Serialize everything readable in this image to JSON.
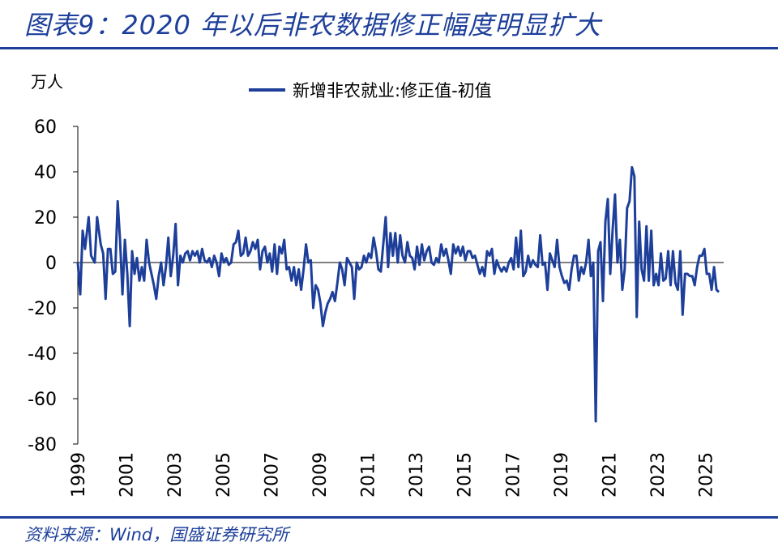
{
  "header": {
    "title": "图表9：2020 年以后非农数据修正幅度明显扩大"
  },
  "footer": {
    "source": "资料来源：Wind，国盛证券研究所"
  },
  "colors": {
    "accent": "#1d3f9a",
    "series": "#1d3f9a"
  },
  "chart_data": {
    "type": "line",
    "title": "",
    "ylabel": "万人",
    "xlabel": "",
    "ylim": [
      -80,
      60
    ],
    "yticks": [
      60,
      40,
      20,
      0,
      -20,
      -40,
      -60,
      -80
    ],
    "xlim": [
      1999.0,
      2025.75
    ],
    "xticks": [
      "1999",
      "2001",
      "2003",
      "2005",
      "2007",
      "2009",
      "2011",
      "2013",
      "2015",
      "2017",
      "2019",
      "2021",
      "2023",
      "2025"
    ],
    "legend_position": "top-center",
    "grid": false,
    "series": [
      {
        "name": "新增非农就业:修正值-初值",
        "points": [
          [
            1999.0,
            0
          ],
          [
            1999.1,
            -14
          ],
          [
            1999.2,
            14
          ],
          [
            1999.3,
            6
          ],
          [
            1999.45,
            20
          ],
          [
            1999.55,
            3
          ],
          [
            1999.7,
            0
          ],
          [
            1999.8,
            20
          ],
          [
            1999.95,
            8
          ],
          [
            2000.05,
            4
          ],
          [
            2000.15,
            -16
          ],
          [
            2000.25,
            6
          ],
          [
            2000.35,
            6
          ],
          [
            2000.45,
            -5
          ],
          [
            2000.55,
            -4
          ],
          [
            2000.65,
            27
          ],
          [
            2000.75,
            10
          ],
          [
            2000.85,
            -14
          ],
          [
            2000.95,
            10
          ],
          [
            2001.05,
            -5
          ],
          [
            2001.15,
            -28
          ],
          [
            2001.25,
            5
          ],
          [
            2001.35,
            -5
          ],
          [
            2001.45,
            2
          ],
          [
            2001.55,
            -8
          ],
          [
            2001.65,
            -2
          ],
          [
            2001.75,
            -8
          ],
          [
            2001.85,
            10
          ],
          [
            2001.95,
            0
          ],
          [
            2002.05,
            -5
          ],
          [
            2002.15,
            -10
          ],
          [
            2002.25,
            -16
          ],
          [
            2002.35,
            -6
          ],
          [
            2002.45,
            0
          ],
          [
            2002.55,
            -10
          ],
          [
            2002.65,
            -2
          ],
          [
            2002.75,
            11
          ],
          [
            2002.85,
            -6
          ],
          [
            2002.95,
            3
          ],
          [
            2003.05,
            17
          ],
          [
            2003.15,
            -10
          ],
          [
            2003.25,
            3
          ],
          [
            2003.35,
            0
          ],
          [
            2003.45,
            4
          ],
          [
            2003.55,
            5
          ],
          [
            2003.65,
            1
          ],
          [
            2003.75,
            5
          ],
          [
            2003.85,
            3
          ],
          [
            2003.95,
            5
          ],
          [
            2004.05,
            0
          ],
          [
            2004.15,
            6
          ],
          [
            2004.25,
            1
          ],
          [
            2004.35,
            0
          ],
          [
            2004.45,
            2
          ],
          [
            2004.55,
            -2
          ],
          [
            2004.65,
            3
          ],
          [
            2004.75,
            0
          ],
          [
            2004.85,
            -6
          ],
          [
            2004.95,
            4
          ],
          [
            2005.05,
            0
          ],
          [
            2005.15,
            2
          ],
          [
            2005.25,
            -1
          ],
          [
            2005.35,
            0
          ],
          [
            2005.45,
            8
          ],
          [
            2005.55,
            9
          ],
          [
            2005.65,
            14
          ],
          [
            2005.75,
            3
          ],
          [
            2005.85,
            4
          ],
          [
            2005.95,
            11
          ],
          [
            2006.05,
            3
          ],
          [
            2006.15,
            5
          ],
          [
            2006.25,
            9
          ],
          [
            2006.35,
            6
          ],
          [
            2006.45,
            10
          ],
          [
            2006.55,
            -3
          ],
          [
            2006.65,
            5
          ],
          [
            2006.75,
            7
          ],
          [
            2006.85,
            0
          ],
          [
            2006.95,
            4
          ],
          [
            2007.05,
            -4
          ],
          [
            2007.15,
            8
          ],
          [
            2007.25,
            -5
          ],
          [
            2007.35,
            7
          ],
          [
            2007.45,
            4
          ],
          [
            2007.55,
            10
          ],
          [
            2007.65,
            -3
          ],
          [
            2007.75,
            -2
          ],
          [
            2007.85,
            -8
          ],
          [
            2007.95,
            -2
          ],
          [
            2008.05,
            -10
          ],
          [
            2008.15,
            -3
          ],
          [
            2008.25,
            -12
          ],
          [
            2008.35,
            -3
          ],
          [
            2008.45,
            8
          ],
          [
            2008.55,
            0
          ],
          [
            2008.65,
            1
          ],
          [
            2008.75,
            -20
          ],
          [
            2008.85,
            -10
          ],
          [
            2008.95,
            -12
          ],
          [
            2009.05,
            -18
          ],
          [
            2009.15,
            -28
          ],
          [
            2009.25,
            -22
          ],
          [
            2009.35,
            -18
          ],
          [
            2009.45,
            -16
          ],
          [
            2009.55,
            -13
          ],
          [
            2009.65,
            -17
          ],
          [
            2009.75,
            -9
          ],
          [
            2009.85,
            0
          ],
          [
            2009.95,
            -3
          ],
          [
            2010.05,
            -10
          ],
          [
            2010.15,
            2
          ],
          [
            2010.25,
            0
          ],
          [
            2010.35,
            -2
          ],
          [
            2010.45,
            -16
          ],
          [
            2010.55,
            0
          ],
          [
            2010.65,
            -3
          ],
          [
            2010.75,
            -2
          ],
          [
            2010.85,
            3
          ],
          [
            2010.95,
            0
          ],
          [
            2011.05,
            4
          ],
          [
            2011.15,
            2
          ],
          [
            2011.25,
            11
          ],
          [
            2011.35,
            5
          ],
          [
            2011.45,
            -3
          ],
          [
            2011.55,
            -4
          ],
          [
            2011.65,
            8
          ],
          [
            2011.75,
            20
          ],
          [
            2011.85,
            -2
          ],
          [
            2011.95,
            13
          ],
          [
            2012.05,
            3
          ],
          [
            2012.15,
            13
          ],
          [
            2012.25,
            0
          ],
          [
            2012.35,
            12
          ],
          [
            2012.45,
            3
          ],
          [
            2012.55,
            0
          ],
          [
            2012.65,
            9
          ],
          [
            2012.75,
            3
          ],
          [
            2012.85,
            2
          ],
          [
            2012.95,
            -3
          ],
          [
            2013.05,
            7
          ],
          [
            2013.15,
            -1
          ],
          [
            2013.25,
            8
          ],
          [
            2013.35,
            1
          ],
          [
            2013.45,
            5
          ],
          [
            2013.55,
            7
          ],
          [
            2013.65,
            0
          ],
          [
            2013.75,
            -1
          ],
          [
            2013.85,
            2
          ],
          [
            2013.95,
            0
          ],
          [
            2014.05,
            8
          ],
          [
            2014.15,
            3
          ],
          [
            2014.25,
            6
          ],
          [
            2014.35,
            1
          ],
          [
            2014.45,
            -5
          ],
          [
            2014.55,
            8
          ],
          [
            2014.65,
            4
          ],
          [
            2014.75,
            7
          ],
          [
            2014.85,
            3
          ],
          [
            2014.95,
            7
          ],
          [
            2015.05,
            1
          ],
          [
            2015.15,
            5
          ],
          [
            2015.25,
            5
          ],
          [
            2015.35,
            2
          ],
          [
            2015.45,
            3
          ],
          [
            2015.55,
            -1
          ],
          [
            2015.65,
            -5
          ],
          [
            2015.75,
            -2
          ],
          [
            2015.85,
            -6
          ],
          [
            2015.95,
            5
          ],
          [
            2016.05,
            3
          ],
          [
            2016.15,
            6
          ],
          [
            2016.25,
            -5
          ],
          [
            2016.35,
            1
          ],
          [
            2016.45,
            -2
          ],
          [
            2016.55,
            -4
          ],
          [
            2016.65,
            -2
          ],
          [
            2016.75,
            -4
          ],
          [
            2016.85,
            0
          ],
          [
            2016.95,
            2
          ],
          [
            2017.05,
            -3
          ],
          [
            2017.15,
            11
          ],
          [
            2017.25,
            -2
          ],
          [
            2017.35,
            14
          ],
          [
            2017.45,
            -6
          ],
          [
            2017.55,
            -4
          ],
          [
            2017.65,
            3
          ],
          [
            2017.75,
            -2
          ],
          [
            2017.85,
            1
          ],
          [
            2017.95,
            -1
          ],
          [
            2018.05,
            -2
          ],
          [
            2018.15,
            12
          ],
          [
            2018.25,
            -1
          ],
          [
            2018.35,
            0
          ],
          [
            2018.45,
            -12
          ],
          [
            2018.55,
            4
          ],
          [
            2018.65,
            1
          ],
          [
            2018.75,
            -2
          ],
          [
            2018.85,
            10
          ],
          [
            2018.95,
            -2
          ],
          [
            2019.05,
            -6
          ],
          [
            2019.15,
            -9
          ],
          [
            2019.25,
            -8
          ],
          [
            2019.35,
            -12
          ],
          [
            2019.45,
            -3
          ],
          [
            2019.55,
            3
          ],
          [
            2019.65,
            3
          ],
          [
            2019.75,
            -8
          ],
          [
            2019.85,
            -2
          ],
          [
            2019.95,
            -5
          ],
          [
            2020.05,
            0
          ],
          [
            2020.15,
            10
          ],
          [
            2020.25,
            -6
          ],
          [
            2020.35,
            0
          ],
          [
            2020.45,
            -70
          ],
          [
            2020.55,
            5
          ],
          [
            2020.65,
            9
          ],
          [
            2020.75,
            -17
          ],
          [
            2020.85,
            18
          ],
          [
            2020.95,
            28
          ],
          [
            2021.05,
            -5
          ],
          [
            2021.15,
            14
          ],
          [
            2021.25,
            30
          ],
          [
            2021.35,
            0
          ],
          [
            2021.45,
            10
          ],
          [
            2021.55,
            -12
          ],
          [
            2021.65,
            -3
          ],
          [
            2021.75,
            24
          ],
          [
            2021.85,
            27
          ],
          [
            2021.95,
            42
          ],
          [
            2022.05,
            38
          ],
          [
            2022.15,
            -24
          ],
          [
            2022.25,
            18
          ],
          [
            2022.35,
            -3
          ],
          [
            2022.45,
            -8
          ],
          [
            2022.55,
            16
          ],
          [
            2022.65,
            -8
          ],
          [
            2022.75,
            14
          ],
          [
            2022.85,
            -10
          ],
          [
            2022.95,
            -5
          ],
          [
            2023.05,
            -10
          ],
          [
            2023.15,
            4
          ],
          [
            2023.25,
            -8
          ],
          [
            2023.35,
            -7
          ],
          [
            2023.45,
            5
          ],
          [
            2023.55,
            -10
          ],
          [
            2023.65,
            5
          ],
          [
            2023.75,
            -9
          ],
          [
            2023.85,
            -12
          ],
          [
            2023.95,
            5
          ],
          [
            2024.05,
            -23
          ],
          [
            2024.15,
            -5
          ],
          [
            2024.25,
            -5
          ],
          [
            2024.35,
            -6
          ],
          [
            2024.45,
            -6
          ],
          [
            2024.55,
            -10
          ],
          [
            2024.65,
            -2
          ],
          [
            2024.75,
            3
          ],
          [
            2024.85,
            3
          ],
          [
            2024.95,
            6
          ],
          [
            2025.05,
            -5
          ],
          [
            2025.15,
            -5
          ],
          [
            2025.25,
            -12
          ],
          [
            2025.35,
            -2
          ],
          [
            2025.45,
            -12
          ],
          [
            2025.55,
            -13
          ]
        ]
      }
    ]
  }
}
